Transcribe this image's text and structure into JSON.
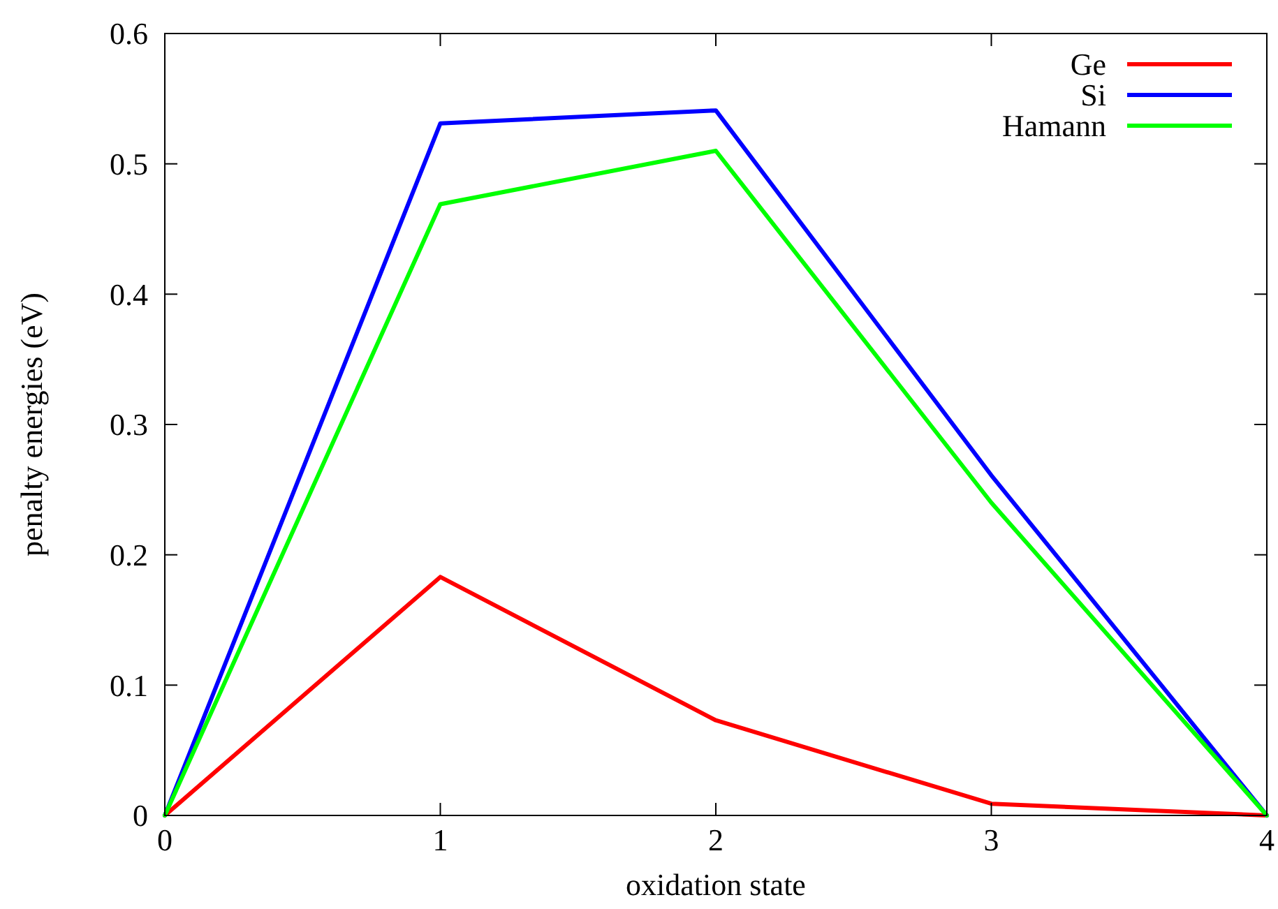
{
  "chart_data": {
    "type": "line",
    "xlabel": "oxidation state",
    "ylabel": "penalty energies (eV)",
    "x": [
      0,
      1,
      2,
      3,
      4
    ],
    "series": [
      {
        "name": "Ge",
        "color": "#ff0000",
        "values": [
          0,
          0.183,
          0.073,
          0.009,
          0
        ]
      },
      {
        "name": "Si",
        "color": "#0000ff",
        "values": [
          0,
          0.531,
          0.541,
          0.261,
          0
        ]
      },
      {
        "name": "Hamann",
        "color": "#00ff00",
        "values": [
          0,
          0.469,
          0.51,
          0.24,
          0
        ]
      }
    ],
    "xlim": [
      0,
      4
    ],
    "xticks": [
      0,
      1,
      2,
      3,
      4
    ],
    "ylim": [
      0,
      0.6
    ],
    "yticks": [
      0,
      0.1,
      0.2,
      0.3,
      0.4,
      0.5,
      0.6
    ],
    "legend": "top right",
    "grid": false,
    "marker": "none",
    "line_style": "solid"
  }
}
